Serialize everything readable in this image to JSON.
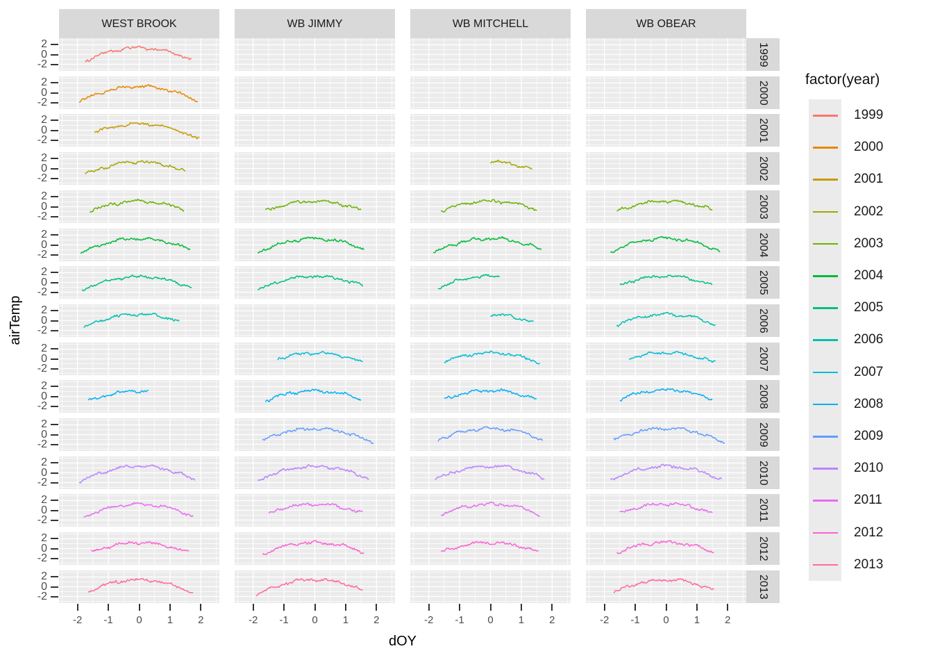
{
  "figure": {
    "y_axis_title": "airTemp",
    "x_axis_title": "dOY"
  },
  "chart_data": {
    "type": "line",
    "title": "",
    "description": "Faceted seasonal curves of standardized air temperature (airTemp) versus standardized day of year (dOY), facet_grid(site ~ year), one noisy arc-shaped daily series per panel.",
    "faceting": {
      "cols": [
        "WEST BROOK",
        "WB JIMMY",
        "WB MITCHELL",
        "WB OBEAR"
      ],
      "rows": [
        1999,
        2000,
        2001,
        2002,
        2003,
        2004,
        2005,
        2006,
        2007,
        2008,
        2009,
        2010,
        2011,
        2012,
        2013
      ]
    },
    "x": {
      "label": "dOY",
      "ticks": [
        -2,
        -1,
        0,
        1,
        2
      ],
      "minor_ticks": [
        -2.5,
        -1.5,
        -0.5,
        0.5,
        1.5,
        2.5
      ],
      "range": [
        -2.6,
        2.6
      ]
    },
    "y": {
      "label": "airTemp",
      "ticks": [
        2,
        0,
        -2
      ],
      "minor_ticks": [
        -3,
        -1,
        1,
        3
      ],
      "range": [
        -3.35,
        3.35
      ]
    },
    "grid": "on",
    "panel_background": "#ebebeb",
    "strip_background": "#d9d9d9",
    "legend": {
      "title": "factor(year)",
      "position": "right",
      "entries": [
        {
          "label": "1999",
          "color": "#F8766D"
        },
        {
          "label": "2000",
          "color": "#E58700"
        },
        {
          "label": "2001",
          "color": "#C99800"
        },
        {
          "label": "2002",
          "color": "#A3A500"
        },
        {
          "label": "2003",
          "color": "#6BB100"
        },
        {
          "label": "2004",
          "color": "#00BA38"
        },
        {
          "label": "2005",
          "color": "#00BF7D"
        },
        {
          "label": "2006",
          "color": "#00C0AF"
        },
        {
          "label": "2007",
          "color": "#00BCD8"
        },
        {
          "label": "2008",
          "color": "#00B0F6"
        },
        {
          "label": "2009",
          "color": "#619CFF"
        },
        {
          "label": "2010",
          "color": "#B983FF"
        },
        {
          "label": "2011",
          "color": "#E76BF3"
        },
        {
          "label": "2012",
          "color": "#FD61D1"
        },
        {
          "label": "2013",
          "color": "#FF67A4"
        }
      ]
    },
    "series_model": "Each panel's line is a noisy seasonal arc estimated from pixels: y = peak - k*x^2 + daily noise (~±0.3), k = (peak + 1.45)/3.24; x_start/x_end give the observed data extent per panel. Panels not listed have no data.",
    "series": [
      {
        "site": "WEST BROOK",
        "year": 1999,
        "x_start": -1.75,
        "x_end": 1.7,
        "peak": 1.35
      },
      {
        "site": "WEST BROOK",
        "year": 2000,
        "x_start": -1.95,
        "x_end": 1.9,
        "peak": 1.3
      },
      {
        "site": "WEST BROOK",
        "year": 2001,
        "x_start": -1.45,
        "x_end": 1.95,
        "peak": 1.3
      },
      {
        "site": "WEST BROOK",
        "year": 2002,
        "x_start": -1.75,
        "x_end": 1.5,
        "peak": 1.35
      },
      {
        "site": "WEST BROOK",
        "year": 2003,
        "x_start": -1.6,
        "x_end": 1.45,
        "peak": 1.1
      },
      {
        "site": "WEST BROOK",
        "year": 2004,
        "x_start": -1.9,
        "x_end": 1.65,
        "peak": 1.3
      },
      {
        "site": "WEST BROOK",
        "year": 2005,
        "x_start": -1.85,
        "x_end": 1.7,
        "peak": 1.2
      },
      {
        "site": "WEST BROOK",
        "year": 2006,
        "x_start": -1.8,
        "x_end": 1.3,
        "peak": 1.3
      },
      {
        "site": "WEST BROOK",
        "year": 2008,
        "x_start": -1.65,
        "x_end": 0.3,
        "peak": 1.1
      },
      {
        "site": "WEST BROOK",
        "year": 2010,
        "x_start": -1.95,
        "x_end": 1.8,
        "peak": 1.35
      },
      {
        "site": "WEST BROOK",
        "year": 2011,
        "x_start": -1.8,
        "x_end": 1.75,
        "peak": 1.25
      },
      {
        "site": "WEST BROOK",
        "year": 2012,
        "x_start": -1.55,
        "x_end": 1.6,
        "peak": 1.2
      },
      {
        "site": "WEST BROOK",
        "year": 2013,
        "x_start": -1.65,
        "x_end": 1.75,
        "peak": 1.45
      },
      {
        "site": "WB JIMMY",
        "year": 2003,
        "x_start": -1.6,
        "x_end": 1.5,
        "peak": 1.1
      },
      {
        "site": "WB JIMMY",
        "year": 2004,
        "x_start": -1.85,
        "x_end": 1.6,
        "peak": 1.3
      },
      {
        "site": "WB JIMMY",
        "year": 2005,
        "x_start": -1.85,
        "x_end": 1.55,
        "peak": 1.25
      },
      {
        "site": "WB JIMMY",
        "year": 2007,
        "x_start": -1.2,
        "x_end": 1.55,
        "peak": 1.2
      },
      {
        "site": "WB JIMMY",
        "year": 2008,
        "x_start": -1.6,
        "x_end": 1.5,
        "peak": 1.15
      },
      {
        "site": "WB JIMMY",
        "year": 2009,
        "x_start": -1.7,
        "x_end": 1.9,
        "peak": 1.2
      },
      {
        "site": "WB JIMMY",
        "year": 2010,
        "x_start": -1.85,
        "x_end": 1.75,
        "peak": 1.3
      },
      {
        "site": "WB JIMMY",
        "year": 2011,
        "x_start": -1.5,
        "x_end": 1.55,
        "peak": 1.3
      },
      {
        "site": "WB JIMMY",
        "year": 2012,
        "x_start": -1.7,
        "x_end": 1.6,
        "peak": 1.25
      },
      {
        "site": "WB JIMMY",
        "year": 2013,
        "x_start": -1.9,
        "x_end": 1.55,
        "peak": 1.45
      },
      {
        "site": "WB MITCHELL",
        "year": 2002,
        "x_start": 0.0,
        "x_end": 1.35,
        "peak": 1.35
      },
      {
        "site": "WB MITCHELL",
        "year": 2003,
        "x_start": -1.6,
        "x_end": 1.5,
        "peak": 1.15
      },
      {
        "site": "WB MITCHELL",
        "year": 2004,
        "x_start": -1.85,
        "x_end": 1.65,
        "peak": 1.3
      },
      {
        "site": "WB MITCHELL",
        "year": 2005,
        "x_start": -1.7,
        "x_end": 0.3,
        "peak": 1.3
      },
      {
        "site": "WB MITCHELL",
        "year": 2006,
        "x_start": 0.0,
        "x_end": 1.4,
        "peak": 1.2
      },
      {
        "site": "WB MITCHELL",
        "year": 2007,
        "x_start": -1.5,
        "x_end": 1.6,
        "peak": 1.25
      },
      {
        "site": "WB MITCHELL",
        "year": 2008,
        "x_start": -1.5,
        "x_end": 1.5,
        "peak": 1.2
      },
      {
        "site": "WB MITCHELL",
        "year": 2009,
        "x_start": -1.7,
        "x_end": 1.7,
        "peak": 1.25
      },
      {
        "site": "WB MITCHELL",
        "year": 2010,
        "x_start": -1.8,
        "x_end": 1.75,
        "peak": 1.35
      },
      {
        "site": "WB MITCHELL",
        "year": 2011,
        "x_start": -1.6,
        "x_end": 1.6,
        "peak": 1.3
      },
      {
        "site": "WB MITCHELL",
        "year": 2012,
        "x_start": -1.6,
        "x_end": 1.55,
        "peak": 1.25
      },
      {
        "site": "WB OBEAR",
        "year": 2003,
        "x_start": -1.6,
        "x_end": 1.5,
        "peak": 1.1
      },
      {
        "site": "WB OBEAR",
        "year": 2004,
        "x_start": -1.8,
        "x_end": 1.75,
        "peak": 1.3
      },
      {
        "site": "WB OBEAR",
        "year": 2005,
        "x_start": -1.5,
        "x_end": 1.5,
        "peak": 1.3
      },
      {
        "site": "WB OBEAR",
        "year": 2006,
        "x_start": -1.6,
        "x_end": 1.6,
        "peak": 1.3
      },
      {
        "site": "WB OBEAR",
        "year": 2007,
        "x_start": -1.2,
        "x_end": 1.6,
        "peak": 1.25
      },
      {
        "site": "WB OBEAR",
        "year": 2008,
        "x_start": -1.5,
        "x_end": 1.5,
        "peak": 1.3
      },
      {
        "site": "WB OBEAR",
        "year": 2009,
        "x_start": -1.7,
        "x_end": 1.9,
        "peak": 1.3
      },
      {
        "site": "WB OBEAR",
        "year": 2010,
        "x_start": -1.8,
        "x_end": 1.8,
        "peak": 1.3
      },
      {
        "site": "WB OBEAR",
        "year": 2011,
        "x_start": -1.5,
        "x_end": 1.5,
        "peak": 1.3
      },
      {
        "site": "WB OBEAR",
        "year": 2012,
        "x_start": -1.6,
        "x_end": 1.55,
        "peak": 1.25
      },
      {
        "site": "WB OBEAR",
        "year": 2013,
        "x_start": -1.7,
        "x_end": 1.55,
        "peak": 1.4
      }
    ]
  }
}
